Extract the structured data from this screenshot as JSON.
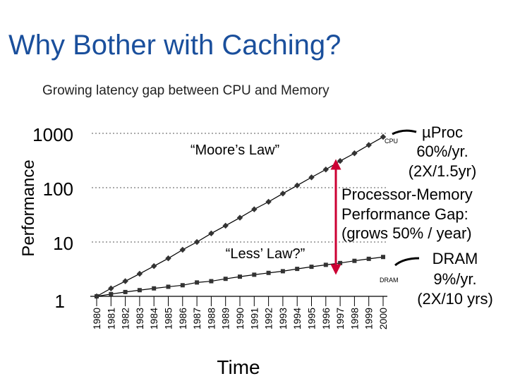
{
  "slide": {
    "title": "Why Bother with Caching?",
    "subtitle": "Growing latency gap between CPU and Memory"
  },
  "chart_data": {
    "type": "line",
    "title": "",
    "xlabel": "Time",
    "ylabel": "Performance",
    "y_scale": "log",
    "ylim": [
      1,
      1000
    ],
    "y_ticks": [
      "1",
      "10",
      "100",
      "1000"
    ],
    "grid": "dotted horizontal lines at 10, 100, 1000",
    "legend": "inline labels next to series",
    "categories": [
      "1980",
      "1981",
      "1982",
      "1983",
      "1984",
      "1985",
      "1986",
      "1987",
      "1988",
      "1989",
      "1990",
      "1991",
      "1992",
      "1993",
      "1994",
      "1995",
      "1996",
      "1997",
      "1998",
      "1999",
      "2000"
    ],
    "series": [
      {
        "name": "CPU",
        "marker": "diamond",
        "color": "#000000",
        "values": [
          1,
          1.4,
          1.9,
          2.6,
          3.6,
          5,
          7.2,
          10,
          14.4,
          20,
          28,
          40,
          55,
          78,
          110,
          155,
          216,
          310,
          430,
          610,
          860
        ]
      },
      {
        "name": "DRAM",
        "marker": "square",
        "color": "#000000",
        "values": [
          1,
          1.1,
          1.2,
          1.3,
          1.4,
          1.5,
          1.6,
          1.8,
          1.9,
          2.1,
          2.3,
          2.5,
          2.7,
          2.9,
          3.2,
          3.5,
          3.8,
          4.1,
          4.5,
          4.9,
          5.3
        ]
      }
    ],
    "annotations": {
      "moores_law": "“Moore’s Law”",
      "less_law": "“Less’ Law?”",
      "uproc_lines": [
        "µProc",
        "60%/yr.",
        "(2X/1.5yr)"
      ],
      "gap_lines": [
        "Processor-Memory",
        "Performance Gap:",
        "(grows 50% / year)"
      ],
      "dram_lines": [
        "DRAM",
        "9%/yr.",
        "(2X/10 yrs)"
      ]
    },
    "colors": {
      "title": "#1a4f9c",
      "gap_arrow": "#cc0033"
    }
  }
}
